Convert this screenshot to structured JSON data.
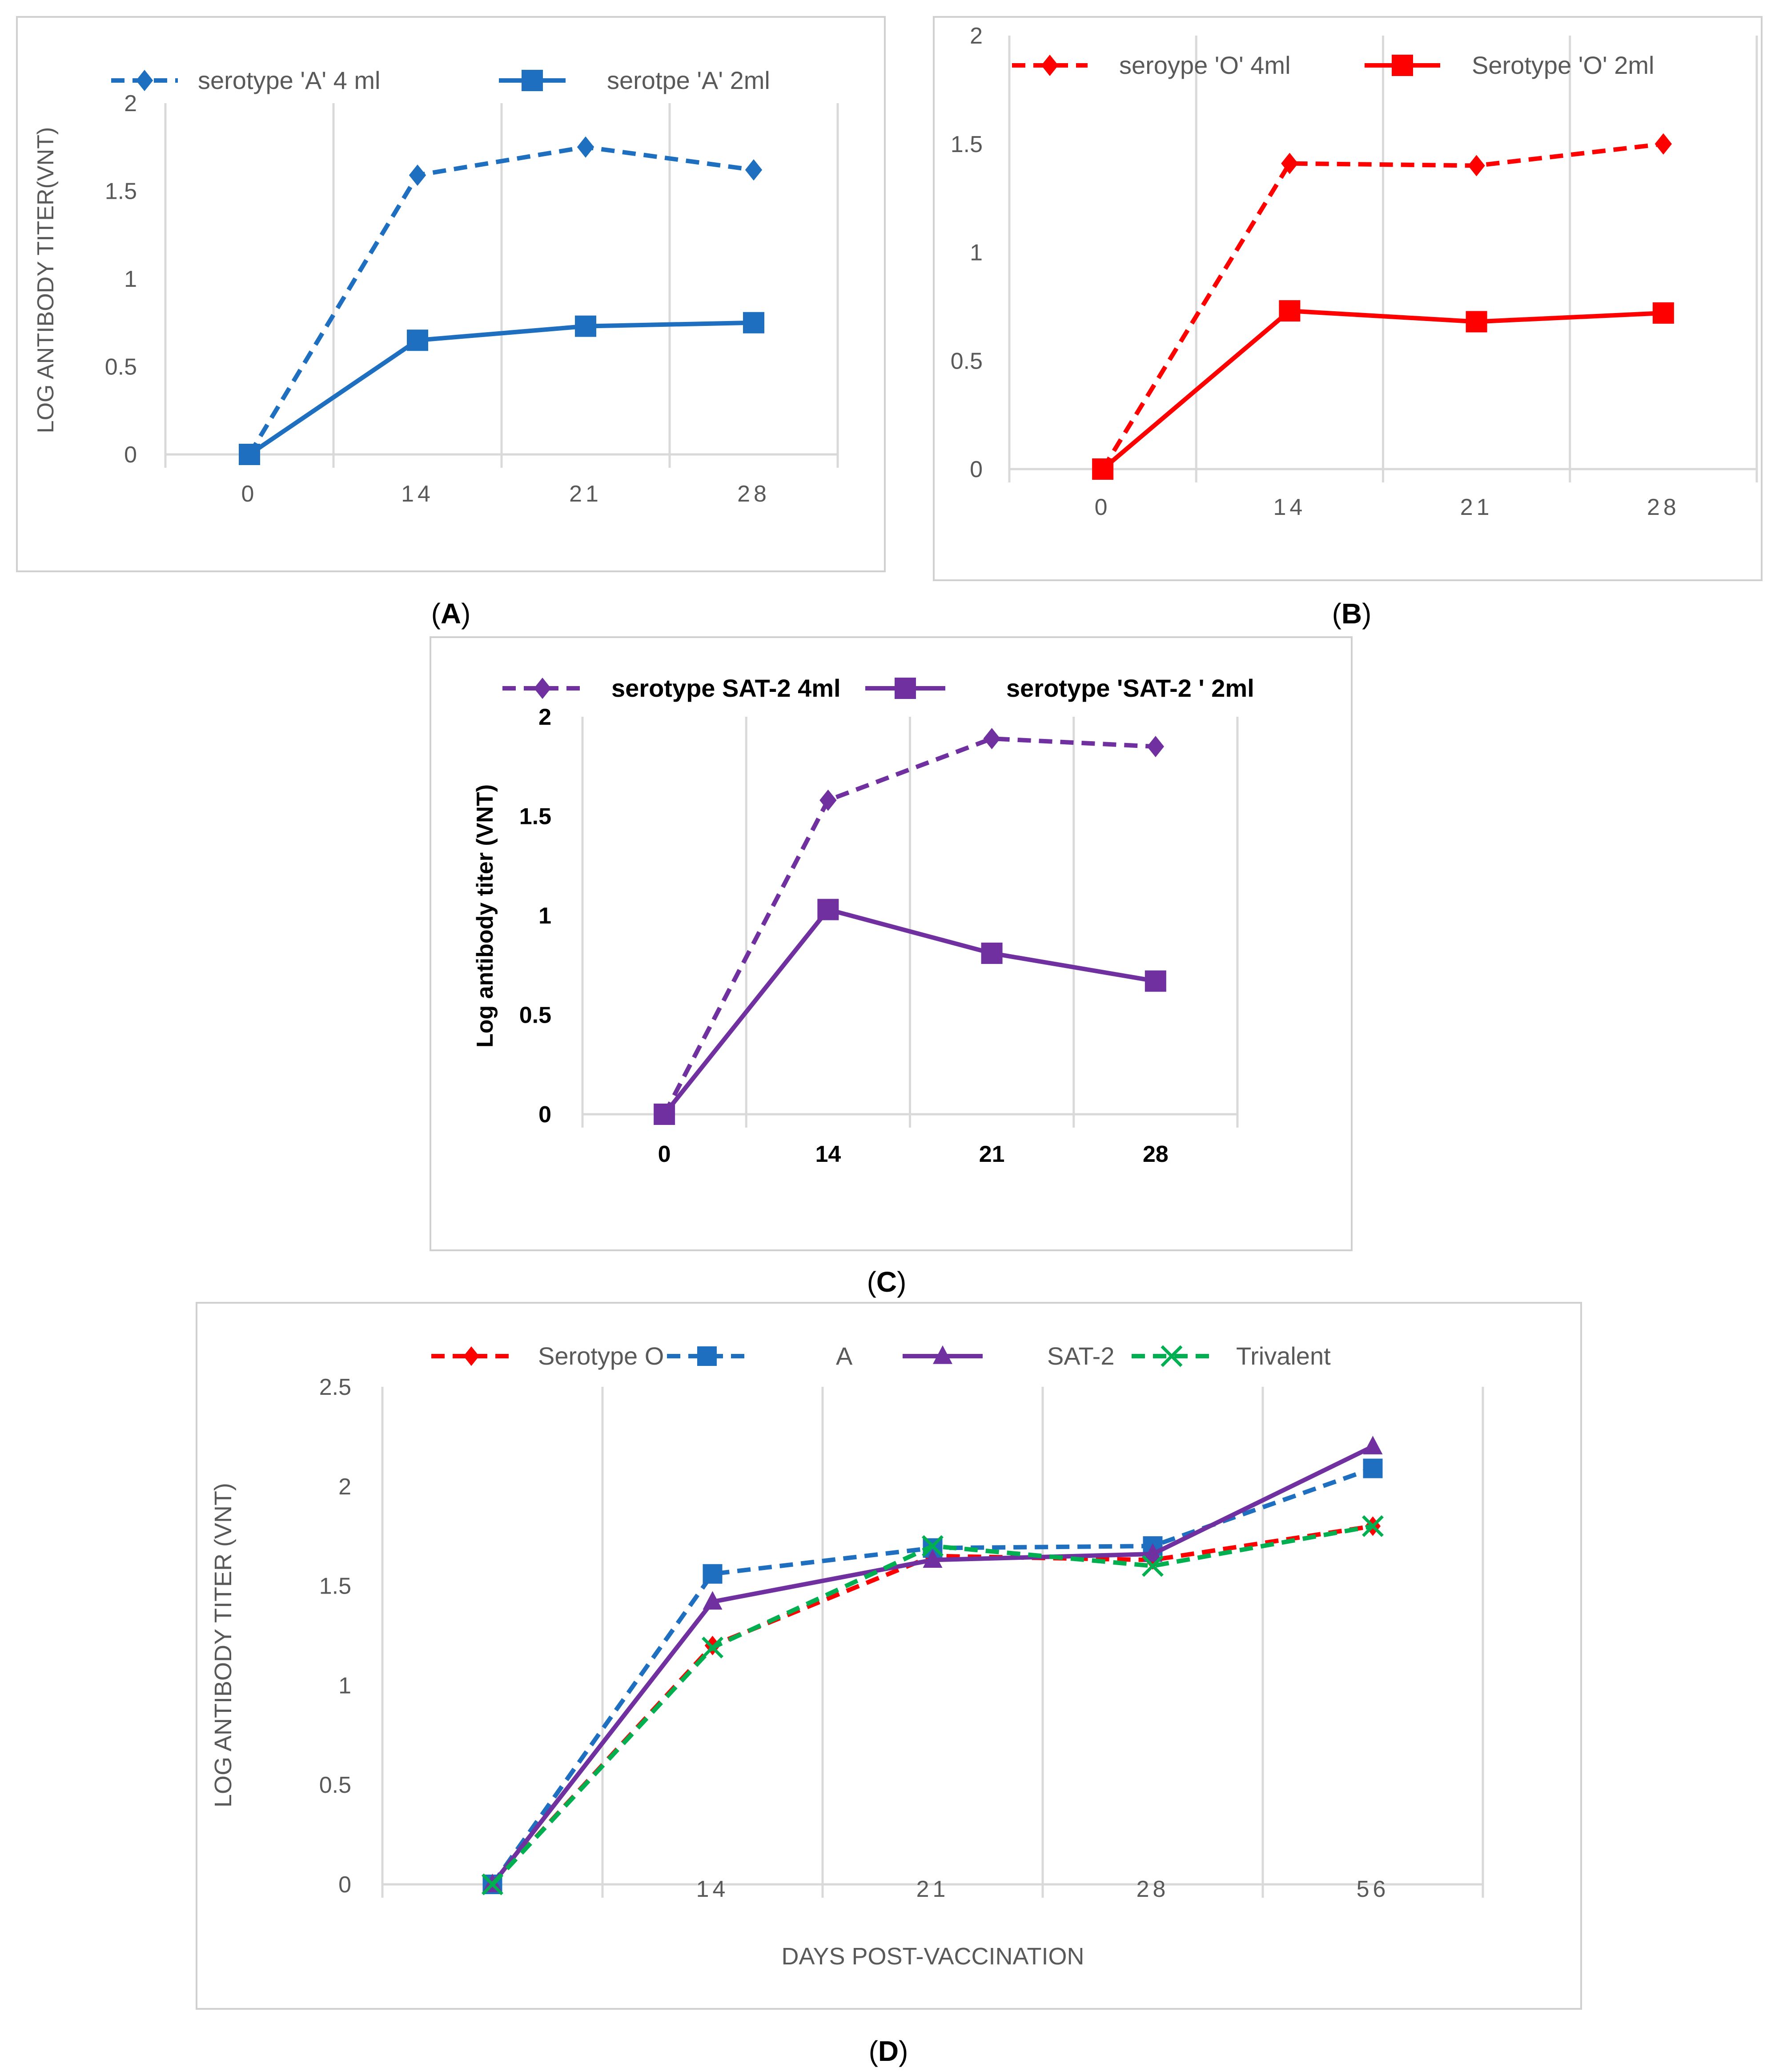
{
  "chart_data": [
    {
      "panel_label": "A",
      "panel_label_bold": "A",
      "type": "line",
      "title": "",
      "xlabel": "",
      "ylabel": "LOG ANTIBODY TITER(VNT)",
      "categories": [
        "0",
        "14",
        "21",
        "28"
      ],
      "ylim": [
        0,
        2
      ],
      "yticks": [
        "0",
        "0.5",
        "1",
        "1.5",
        "2"
      ],
      "grid": "vertical",
      "legend": "top",
      "series": [
        {
          "name": "serotype 'A' 4 ml",
          "values": [
            0,
            1.59,
            1.75,
            1.62
          ],
          "color": "#1f6fc0",
          "dash": "dashed",
          "marker": "diamond"
        },
        {
          "name": "serotpe 'A' 2ml",
          "values": [
            0,
            0.65,
            0.73,
            0.75
          ],
          "color": "#1f6fc0",
          "dash": "solid",
          "marker": "square"
        }
      ]
    },
    {
      "panel_label": "B",
      "panel_label_bold": "B",
      "type": "line",
      "title": "",
      "xlabel": "",
      "ylabel": "",
      "categories": [
        "0",
        "14",
        "21",
        "28"
      ],
      "ylim": [
        0,
        2
      ],
      "yticks": [
        "0",
        "0.5",
        "1",
        "1.5",
        "2"
      ],
      "grid": "vertical",
      "legend": "top",
      "series": [
        {
          "name": "seroype 'O' 4ml",
          "values": [
            0,
            1.41,
            1.4,
            1.5
          ],
          "color": "#ff0000",
          "dash": "dashed",
          "marker": "diamond"
        },
        {
          "name": "Serotype 'O' 2ml",
          "values": [
            0,
            0.73,
            0.68,
            0.72
          ],
          "color": "#ff0000",
          "dash": "solid",
          "marker": "square"
        }
      ]
    },
    {
      "panel_label": "C",
      "panel_label_bold": "C",
      "type": "line",
      "title": "",
      "xlabel": "",
      "ylabel": "Log antibody titer (VNT)",
      "categories": [
        "0",
        "14",
        "21",
        "28"
      ],
      "ylim": [
        0,
        2
      ],
      "yticks": [
        "0",
        "0.5",
        "1",
        "1.5",
        "2"
      ],
      "grid": "vertical",
      "legend": "top",
      "series": [
        {
          "name": "serotype SAT-2 4ml",
          "values": [
            0,
            1.58,
            1.89,
            1.85
          ],
          "color": "#7030a0",
          "dash": "dashed",
          "marker": "diamond"
        },
        {
          "name": "serotype 'SAT-2 ' 2ml",
          "values": [
            0,
            1.03,
            0.81,
            0.67
          ],
          "color": "#7030a0",
          "dash": "solid",
          "marker": "square"
        }
      ]
    },
    {
      "panel_label": "D",
      "panel_label_bold": "D",
      "type": "line",
      "title": "",
      "xlabel": "DAYS POST-VACCINATION",
      "ylabel": "LOG  ANTIBODY TITER (VNT)",
      "categories": [
        "",
        "14",
        "21",
        "28",
        "56"
      ],
      "ylim": [
        0,
        2.5
      ],
      "yticks": [
        "0",
        "0.5",
        "1",
        "1.5",
        "2",
        "2.5"
      ],
      "grid": "vertical",
      "legend": "top",
      "series": [
        {
          "name": "Serotype O",
          "values": [
            0,
            1.2,
            1.65,
            1.63,
            1.8
          ],
          "color": "#ff0000",
          "dash": "dashed",
          "marker": "diamond"
        },
        {
          "name": "A",
          "values": [
            0,
            1.56,
            1.69,
            1.7,
            2.09
          ],
          "color": "#1f6fc0",
          "dash": "dashed",
          "marker": "square"
        },
        {
          "name": "SAT-2",
          "values": [
            0,
            1.42,
            1.63,
            1.66,
            2.2
          ],
          "color": "#7030a0",
          "dash": "solid",
          "marker": "triangle"
        },
        {
          "name": "Trivalent",
          "values": [
            0,
            1.19,
            1.7,
            1.6,
            1.8
          ],
          "color": "#00b050",
          "dash": "dashed",
          "marker": "x"
        }
      ]
    }
  ]
}
